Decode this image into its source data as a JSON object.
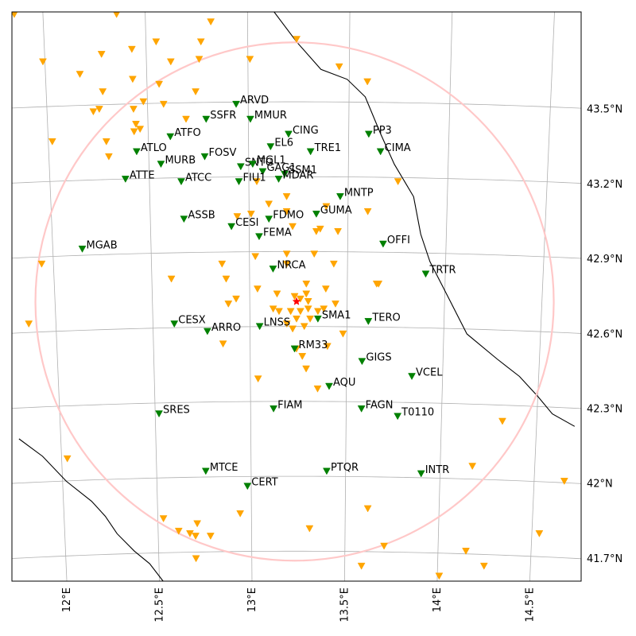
{
  "map": {
    "lon_range": [
      11.78,
      14.7
    ],
    "lat_range": [
      41.58,
      43.86
    ],
    "circle_center": {
      "lon": 13.23,
      "lat": 42.7
    },
    "colors": {
      "grid": "#b0b0b0",
      "coast": "#000000",
      "circle": "#ffc8c8",
      "station": "#008000",
      "other_station": "#ffa500",
      "epicenter": "#ff0000",
      "frame": "#000000"
    },
    "lon_ticks": [
      {
        "value": 12.0,
        "label": "12°E"
      },
      {
        "value": 12.5,
        "label": "12.5°E"
      },
      {
        "value": 13.0,
        "label": "13°E"
      },
      {
        "value": 13.5,
        "label": "13.5°E"
      },
      {
        "value": 14.0,
        "label": "14°E"
      },
      {
        "value": 14.5,
        "label": "14.5°E"
      }
    ],
    "lat_ticks": [
      {
        "value": 43.5,
        "label": "43.5°N"
      },
      {
        "value": 43.2,
        "label": "43.2°N"
      },
      {
        "value": 42.9,
        "label": "42.9°N"
      },
      {
        "value": 42.6,
        "label": "42.6°N"
      },
      {
        "value": 42.3,
        "label": "42.3°N"
      },
      {
        "value": 42.0,
        "label": "42°N"
      },
      {
        "value": 41.7,
        "label": "41.7°N"
      }
    ],
    "epicenter": {
      "lon": 13.24,
      "lat": 42.7
    },
    "coastline_ne": [
      [
        13.13,
        43.86
      ],
      [
        13.24,
        43.74
      ],
      [
        13.36,
        43.63
      ],
      [
        13.49,
        43.59
      ],
      [
        13.58,
        43.52
      ],
      [
        13.66,
        43.37
      ],
      [
        13.73,
        43.25
      ],
      [
        13.83,
        43.12
      ],
      [
        13.87,
        42.97
      ],
      [
        13.92,
        42.86
      ],
      [
        14.03,
        42.7
      ],
      [
        14.12,
        42.57
      ],
      [
        14.28,
        42.47
      ],
      [
        14.4,
        42.4
      ],
      [
        14.5,
        42.32
      ],
      [
        14.58,
        42.25
      ],
      [
        14.7,
        42.2
      ]
    ],
    "coastline_sw": [
      [
        11.78,
        42.15
      ],
      [
        11.9,
        42.08
      ],
      [
        12.02,
        41.98
      ],
      [
        12.15,
        41.9
      ],
      [
        12.22,
        41.84
      ],
      [
        12.28,
        41.77
      ],
      [
        12.37,
        41.7
      ],
      [
        12.45,
        41.65
      ],
      [
        12.52,
        41.58
      ]
    ],
    "green_stations": [
      {
        "name": "ARVD",
        "lon": 12.94,
        "lat": 43.49
      },
      {
        "name": "SSFR",
        "lon": 12.79,
        "lat": 43.43
      },
      {
        "name": "MMUR",
        "lon": 13.01,
        "lat": 43.43
      },
      {
        "name": "ATFO",
        "lon": 12.61,
        "lat": 43.36
      },
      {
        "name": "CING",
        "lon": 13.2,
        "lat": 43.37
      },
      {
        "name": "PP3",
        "lon": 13.6,
        "lat": 43.37
      },
      {
        "name": "EL6",
        "lon": 13.11,
        "lat": 43.32
      },
      {
        "name": "ATLO",
        "lon": 12.44,
        "lat": 43.3
      },
      {
        "name": "TRE1",
        "lon": 13.31,
        "lat": 43.3
      },
      {
        "name": "CIMA",
        "lon": 13.66,
        "lat": 43.3
      },
      {
        "name": "FOSV",
        "lon": 12.78,
        "lat": 43.28
      },
      {
        "name": "MURB",
        "lon": 12.56,
        "lat": 43.25
      },
      {
        "name": "SNTG",
        "lon": 12.96,
        "lat": 43.24
      },
      {
        "name": "MGL1",
        "lon": 13.02,
        "lat": 43.25
      },
      {
        "name": "GAG1",
        "lon": 13.07,
        "lat": 43.22
      },
      {
        "name": "SSM1",
        "lon": 13.18,
        "lat": 43.21
      },
      {
        "name": "ATTE",
        "lon": 12.38,
        "lat": 43.19
      },
      {
        "name": "ATCC",
        "lon": 12.66,
        "lat": 43.18
      },
      {
        "name": "FIU1",
        "lon": 12.95,
        "lat": 43.18
      },
      {
        "name": "MDAR",
        "lon": 13.15,
        "lat": 43.19
      },
      {
        "name": "MNTP",
        "lon": 13.46,
        "lat": 43.12
      },
      {
        "name": "ASSB",
        "lon": 12.67,
        "lat": 43.03
      },
      {
        "name": "GUMA",
        "lon": 13.34,
        "lat": 43.05
      },
      {
        "name": "FDMO",
        "lon": 13.1,
        "lat": 43.03
      },
      {
        "name": "CESI",
        "lon": 12.91,
        "lat": 43.0
      },
      {
        "name": "FEMA",
        "lon": 13.05,
        "lat": 42.96
      },
      {
        "name": "OFFI",
        "lon": 13.68,
        "lat": 42.93
      },
      {
        "name": "MGAB",
        "lon": 12.15,
        "lat": 42.91
      },
      {
        "name": "NRCA",
        "lon": 13.12,
        "lat": 42.83
      },
      {
        "name": "TRTR",
        "lon": 13.9,
        "lat": 42.81
      },
      {
        "name": "CESX",
        "lon": 12.61,
        "lat": 42.61
      },
      {
        "name": "ARRO",
        "lon": 12.78,
        "lat": 42.58
      },
      {
        "name": "LNSS",
        "lon": 13.05,
        "lat": 42.6
      },
      {
        "name": "SMA1",
        "lon": 13.35,
        "lat": 42.63
      },
      {
        "name": "TERO",
        "lon": 13.61,
        "lat": 42.62
      },
      {
        "name": "RM33",
        "lon": 13.23,
        "lat": 42.51
      },
      {
        "name": "GIGS",
        "lon": 13.58,
        "lat": 42.46
      },
      {
        "name": "VCEL",
        "lon": 13.84,
        "lat": 42.4
      },
      {
        "name": "AQU",
        "lon": 13.41,
        "lat": 42.36
      },
      {
        "name": "FIAM",
        "lon": 13.12,
        "lat": 42.27
      },
      {
        "name": "FAGN",
        "lon": 13.58,
        "lat": 42.27
      },
      {
        "name": "T0110",
        "lon": 13.77,
        "lat": 42.24
      },
      {
        "name": "SRES",
        "lon": 12.52,
        "lat": 42.25
      },
      {
        "name": "MTCE",
        "lon": 12.76,
        "lat": 42.02
      },
      {
        "name": "PTQR",
        "lon": 13.4,
        "lat": 42.02
      },
      {
        "name": "INTR",
        "lon": 13.9,
        "lat": 42.01
      },
      {
        "name": "CERT",
        "lon": 12.98,
        "lat": 41.96
      }
    ],
    "orange_stations": [
      [
        11.86,
        43.85
      ],
      [
        12.36,
        43.85
      ],
      [
        12.82,
        43.82
      ],
      [
        13.24,
        43.75
      ],
      [
        12.55,
        43.74
      ],
      [
        12.77,
        43.74
      ],
      [
        12.43,
        43.71
      ],
      [
        12.28,
        43.69
      ],
      [
        12.62,
        43.66
      ],
      [
        12.76,
        43.67
      ],
      [
        13.01,
        43.67
      ],
      [
        11.99,
        43.66
      ],
      [
        13.45,
        43.64
      ],
      [
        12.17,
        43.61
      ],
      [
        12.43,
        43.59
      ],
      [
        13.59,
        43.58
      ],
      [
        12.56,
        43.57
      ],
      [
        12.28,
        43.54
      ],
      [
        12.74,
        43.54
      ],
      [
        12.48,
        43.5
      ],
      [
        12.58,
        43.49
      ],
      [
        12.43,
        43.47
      ],
      [
        12.26,
        43.47
      ],
      [
        12.23,
        43.46
      ],
      [
        12.69,
        43.43
      ],
      [
        12.44,
        43.41
      ],
      [
        12.46,
        43.39
      ],
      [
        12.43,
        43.38
      ],
      [
        12.02,
        43.34
      ],
      [
        12.29,
        43.34
      ],
      [
        12.3,
        43.28
      ],
      [
        13.75,
        43.18
      ],
      [
        13.04,
        43.18
      ],
      [
        13.19,
        43.12
      ],
      [
        13.1,
        43.09
      ],
      [
        13.39,
        43.08
      ],
      [
        13.19,
        43.06
      ],
      [
        13.6,
        43.06
      ],
      [
        13.01,
        43.05
      ],
      [
        12.94,
        43.04
      ],
      [
        13.22,
        43.0
      ],
      [
        13.36,
        42.99
      ],
      [
        13.45,
        42.98
      ],
      [
        13.34,
        42.98
      ],
      [
        13.03,
        42.88
      ],
      [
        13.33,
        42.89
      ],
      [
        13.19,
        42.89
      ],
      [
        12.86,
        42.85
      ],
      [
        13.19,
        42.85
      ],
      [
        12.88,
        42.79
      ],
      [
        13.43,
        42.85
      ],
      [
        11.94,
        42.85
      ],
      [
        12.6,
        42.79
      ],
      [
        13.65,
        42.77
      ],
      [
        13.66,
        42.77
      ],
      [
        13.04,
        42.75
      ],
      [
        13.29,
        42.77
      ],
      [
        13.14,
        42.73
      ],
      [
        13.29,
        42.73
      ],
      [
        13.23,
        42.72
      ],
      [
        13.39,
        42.75
      ],
      [
        12.93,
        42.71
      ],
      [
        12.89,
        42.69
      ],
      [
        13.26,
        42.71
      ],
      [
        13.3,
        42.7
      ],
      [
        13.35,
        42.66
      ],
      [
        13.38,
        42.67
      ],
      [
        13.12,
        42.67
      ],
      [
        13.15,
        42.66
      ],
      [
        13.21,
        42.66
      ],
      [
        13.26,
        42.66
      ],
      [
        13.3,
        42.67
      ],
      [
        13.24,
        42.63
      ],
      [
        13.31,
        42.63
      ],
      [
        13.19,
        42.61
      ],
      [
        13.28,
        42.6
      ],
      [
        13.44,
        42.69
      ],
      [
        13.22,
        42.59
      ],
      [
        13.48,
        42.57
      ],
      [
        11.86,
        42.61
      ],
      [
        12.86,
        42.53
      ],
      [
        13.4,
        42.52
      ],
      [
        13.24,
        42.51
      ],
      [
        13.27,
        42.48
      ],
      [
        13.29,
        42.43
      ],
      [
        13.04,
        42.39
      ],
      [
        13.35,
        42.35
      ],
      [
        14.32,
        42.22
      ],
      [
        12.03,
        42.07
      ],
      [
        14.17,
        42.04
      ],
      [
        14.66,
        41.98
      ],
      [
        13.62,
        41.87
      ],
      [
        12.94,
        41.85
      ],
      [
        12.53,
        41.83
      ],
      [
        12.71,
        41.81
      ],
      [
        12.61,
        41.78
      ],
      [
        12.67,
        41.77
      ],
      [
        12.7,
        41.76
      ],
      [
        12.78,
        41.76
      ],
      [
        13.31,
        41.79
      ],
      [
        14.54,
        41.77
      ],
      [
        13.71,
        41.72
      ],
      [
        14.15,
        41.7
      ],
      [
        12.7,
        41.67
      ],
      [
        13.59,
        41.64
      ],
      [
        14.25,
        41.64
      ],
      [
        14.01,
        41.6
      ]
    ]
  }
}
